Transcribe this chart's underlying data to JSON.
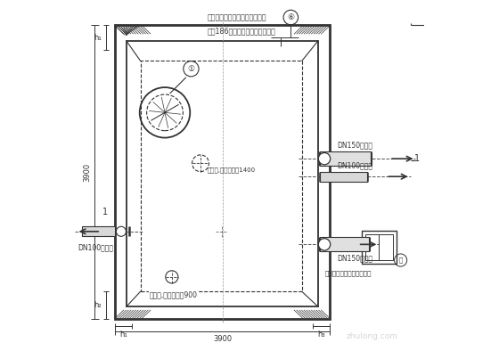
{
  "bg_color": "#ffffff",
  "line_color": "#333333",
  "labels": {
    "dim_left": "3900",
    "dim_bottom": "3900",
    "text1a": "顶板预留水位传示装置孔，做法",
    "text2": "见第186页，安装要求详见总说明",
    "dn150out": "DN150出水管",
    "dn100filter": "DN100滤水管",
    "dn100in": "DN100进水管",
    "dn150overflow": "DN150溢水管",
    "ventilation1": "通风管,高出覆土面1400",
    "ventilation2": "通风管,高出覆土面900",
    "size_note": "尺寸根据工程具体情况决定"
  }
}
